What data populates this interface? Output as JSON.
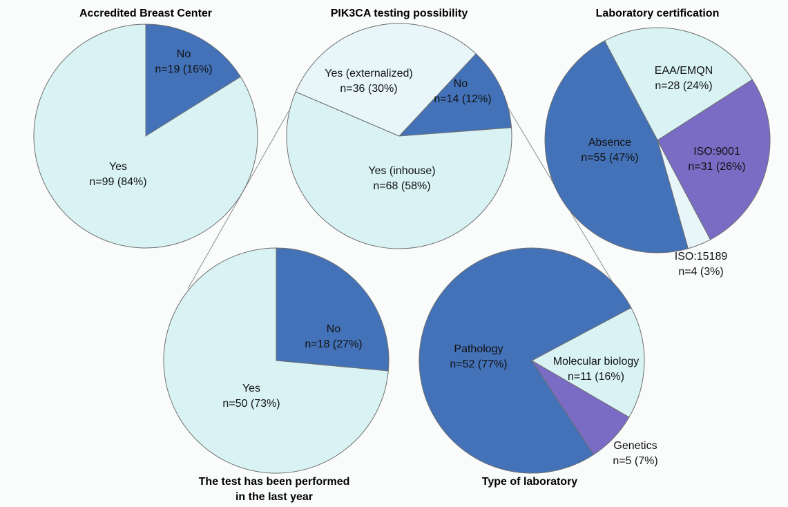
{
  "colors": {
    "dark_blue": "#4372b8",
    "light_cyan": "#d9f3f5",
    "very_light": "#e8f6fa",
    "purple": "#7a6cc4"
  },
  "chart_data": [
    {
      "type": "pie",
      "title": "Accredited Breast Center",
      "slices": [
        {
          "label": "No",
          "value_text": "n=19 (16%)",
          "value": 19,
          "percent": 16,
          "color": "#4372b8"
        },
        {
          "label": "Yes",
          "value_text": "n=99 (84%)",
          "value": 99,
          "percent": 84,
          "color": "#d9f3f5"
        }
      ]
    },
    {
      "type": "pie",
      "title": "PIK3CA testing possibility",
      "slices": [
        {
          "label": "No",
          "value_text": "n=14 (12%)",
          "value": 14,
          "percent": 12,
          "color": "#4372b8"
        },
        {
          "label": "Yes (inhouse)",
          "value_text": "n=68 (58%)",
          "value": 68,
          "percent": 58,
          "color": "#d9f3f5"
        },
        {
          "label": "Yes (externalized)",
          "value_text": "n=36 (30%)",
          "value": 36,
          "percent": 30,
          "color": "#e8f6fa"
        }
      ]
    },
    {
      "type": "pie",
      "title": "Laboratory certification",
      "slices": [
        {
          "label": "EAA/EMQN",
          "value_text": "n=28 (24%)",
          "value": 28,
          "percent": 24,
          "color": "#d9f3f5"
        },
        {
          "label": "ISO:9001",
          "value_text": "n=31 (26%)",
          "value": 31,
          "percent": 26,
          "color": "#7a6cc4"
        },
        {
          "label": "ISO:15189",
          "value_text": "n=4 (3%)",
          "value": 4,
          "percent": 3,
          "color": "#e8f6fa"
        },
        {
          "label": "Absence",
          "value_text": "n=55 (47%)",
          "value": 55,
          "percent": 47,
          "color": "#4372b8"
        }
      ]
    },
    {
      "type": "pie",
      "title_lines": [
        "The test has been performed",
        "in the last year"
      ],
      "slices": [
        {
          "label": "No",
          "value_text": "n=18 (27%)",
          "value": 18,
          "percent": 27,
          "color": "#4372b8"
        },
        {
          "label": "Yes",
          "value_text": "n=50 (73%)",
          "value": 50,
          "percent": 73,
          "color": "#d9f3f5"
        }
      ]
    },
    {
      "type": "pie",
      "title": "Type of laboratory",
      "slices": [
        {
          "label": "Molecular biology",
          "value_text": "n=11 (16%)",
          "value": 11,
          "percent": 16,
          "color": "#d9f3f5"
        },
        {
          "label": "Genetics",
          "value_text": "n=5 (7%)",
          "value": 5,
          "percent": 7,
          "color": "#7a6cc4"
        },
        {
          "label": "Pathology",
          "value_text": "n=52 (77%)",
          "value": 52,
          "percent": 77,
          "color": "#4372b8"
        }
      ]
    }
  ]
}
